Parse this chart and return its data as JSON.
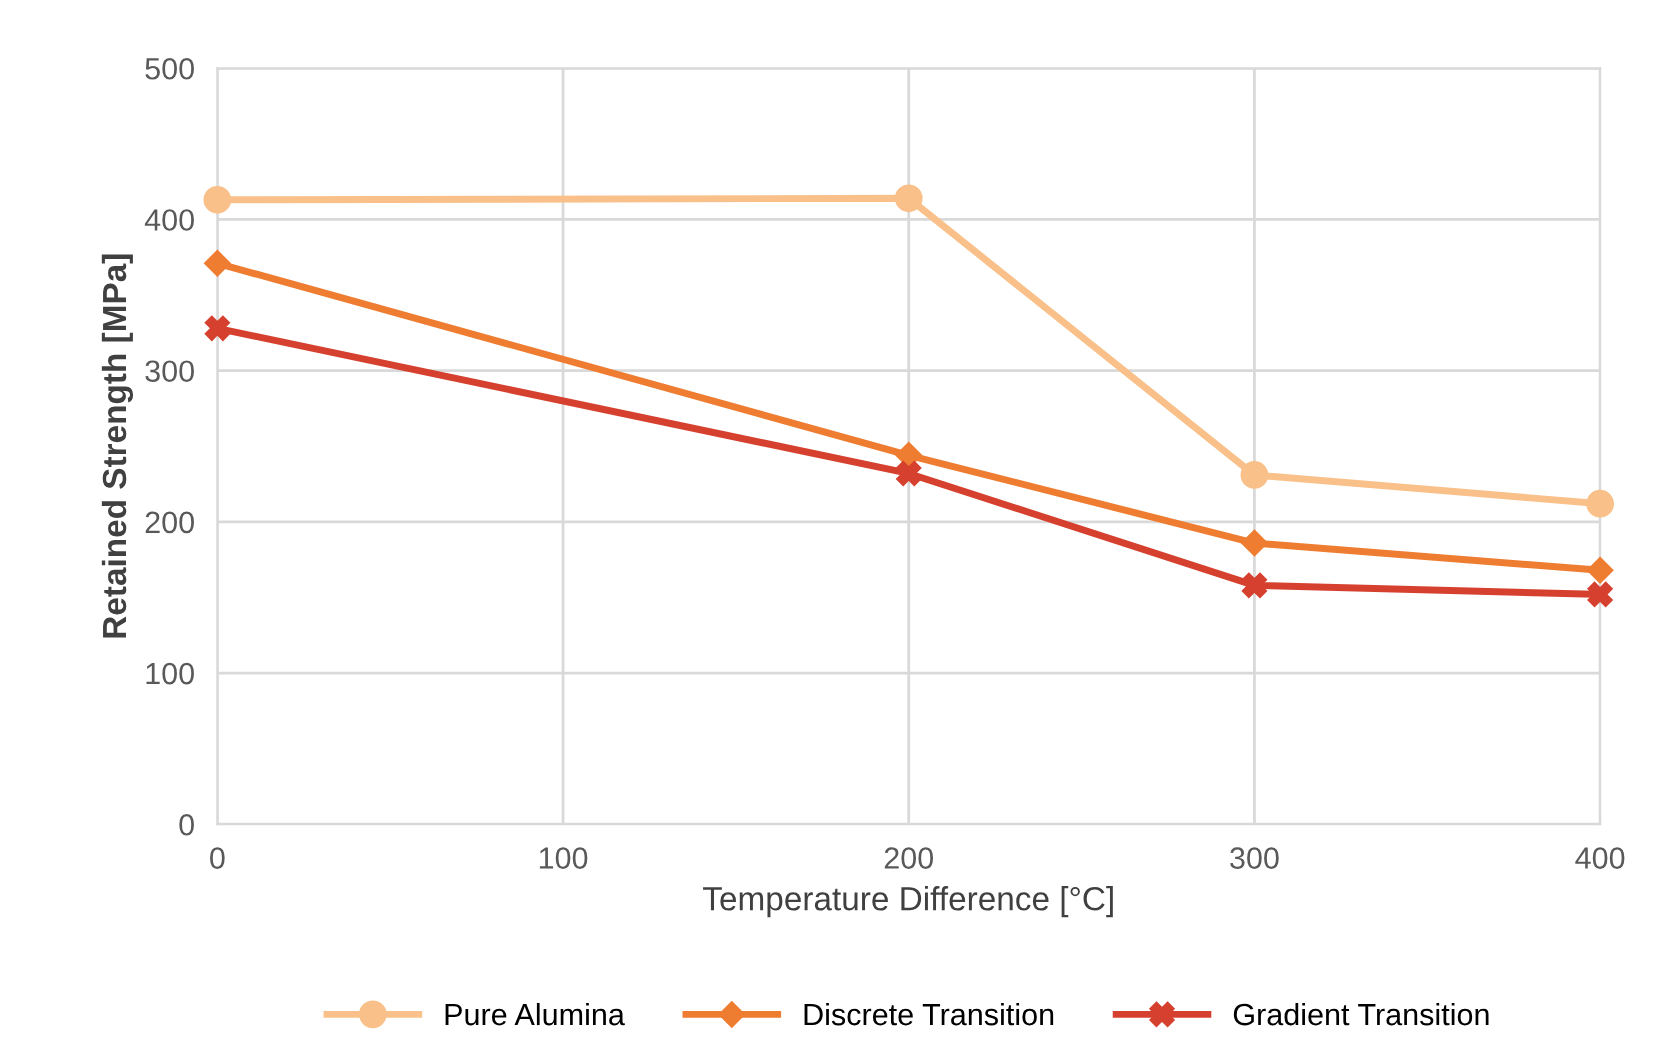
{
  "chart_data": {
    "type": "line",
    "xlabel": "Temperature Difference [°C]",
    "ylabel": "Retained Strength [MPa]",
    "x": [
      0,
      200,
      300,
      400
    ],
    "series": [
      {
        "name": "Pure Alumina",
        "color": "#f9c08a",
        "marker": "circle",
        "values": [
          413,
          414,
          231,
          212
        ]
      },
      {
        "name": "Discrete Transition",
        "color": "#ef7d31",
        "marker": "diamond",
        "values": [
          371,
          244,
          186,
          168
        ]
      },
      {
        "name": "Gradient Transition",
        "color": "#d6412f",
        "marker": "cross",
        "values": [
          328,
          232,
          158,
          152
        ]
      }
    ],
    "xlim": [
      0,
      400
    ],
    "xticks": [
      0,
      100,
      200,
      300,
      400
    ],
    "ylim": [
      0,
      500
    ],
    "yticks": [
      0,
      100,
      200,
      300,
      400,
      500
    ],
    "grid": true,
    "legend": "bottom",
    "line_style": "solid"
  }
}
